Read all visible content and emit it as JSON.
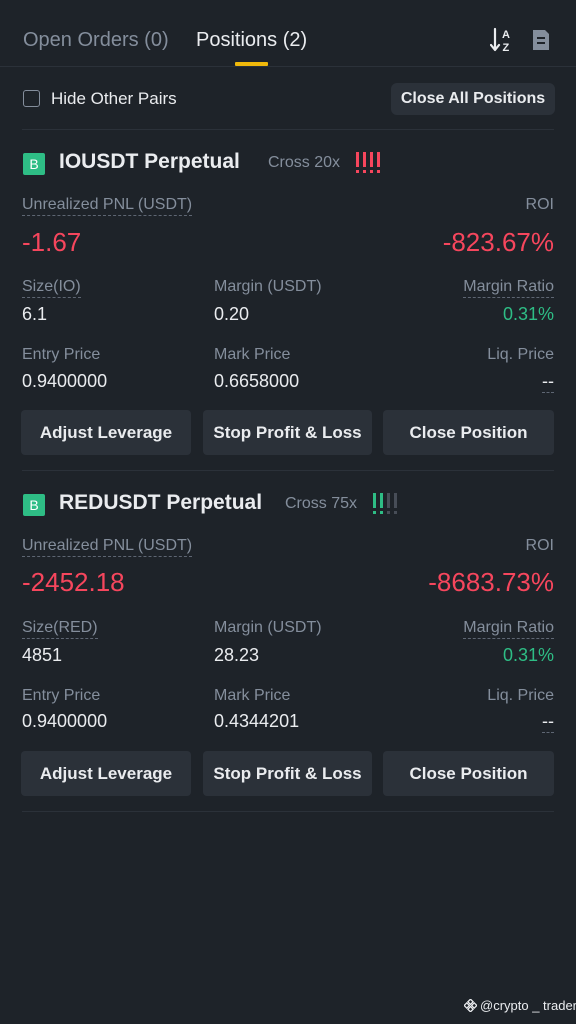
{
  "tabs": {
    "open_orders": "Open Orders (0)",
    "positions": "Positions (2)"
  },
  "icons": {
    "sort": "sort-az-icon",
    "document": "document-icon",
    "watermark": "binance-logo-icon"
  },
  "filter": {
    "hide_other_pairs": "Hide Other Pairs",
    "checked": false,
    "close_all": "Close All Positions"
  },
  "colors": {
    "background": "#1e2329",
    "accent": "#f0b90b",
    "negative": "#f6465d",
    "positive": "#2ebd85",
    "muted": "#848e9c"
  },
  "positions": [
    {
      "badge": "B",
      "symbol": "IOUSDT Perpetual",
      "leverage": "Cross 20x",
      "risk_level": 4,
      "risk_level_max": 4,
      "risk_color": "#f6465d",
      "pnl_label": "Unrealized PNL (USDT)",
      "pnl": "-1.67",
      "roi_label": "ROI",
      "roi": "-823.67%",
      "size_label": "Size(IO)",
      "size": "6.1",
      "margin_label": "Margin (USDT)",
      "margin": "0.20",
      "margin_ratio_label": "Margin Ratio",
      "margin_ratio": "0.31%",
      "entry_label": "Entry Price",
      "entry": "0.9400000",
      "mark_label": "Mark Price",
      "mark": "0.6658000",
      "liq_label": "Liq. Price",
      "liq": "--",
      "buttons": {
        "adjust": "Adjust Leverage",
        "tpsl": "Stop Profit & Loss",
        "close": "Close Position"
      }
    },
    {
      "badge": "B",
      "symbol": "REDUSDT Perpetual",
      "leverage": "Cross 75x",
      "risk_level": 2,
      "risk_level_max": 4,
      "risk_color": "#2ebd85",
      "pnl_label": "Unrealized PNL (USDT)",
      "pnl": "-2452.18",
      "roi_label": "ROI",
      "roi": "-8683.73%",
      "size_label": "Size(RED)",
      "size": "4851",
      "margin_label": "Margin (USDT)",
      "margin": "28.23",
      "margin_ratio_label": "Margin Ratio",
      "margin_ratio": "0.31%",
      "entry_label": "Entry Price",
      "entry": "0.9400000",
      "mark_label": "Mark Price",
      "mark": "0.4344201",
      "liq_label": "Liq. Price",
      "liq": "--",
      "buttons": {
        "adjust": "Adjust Leverage",
        "tpsl": "Stop Profit & Loss",
        "close": "Close Position"
      }
    }
  ],
  "watermark": "@crypto _ trader"
}
